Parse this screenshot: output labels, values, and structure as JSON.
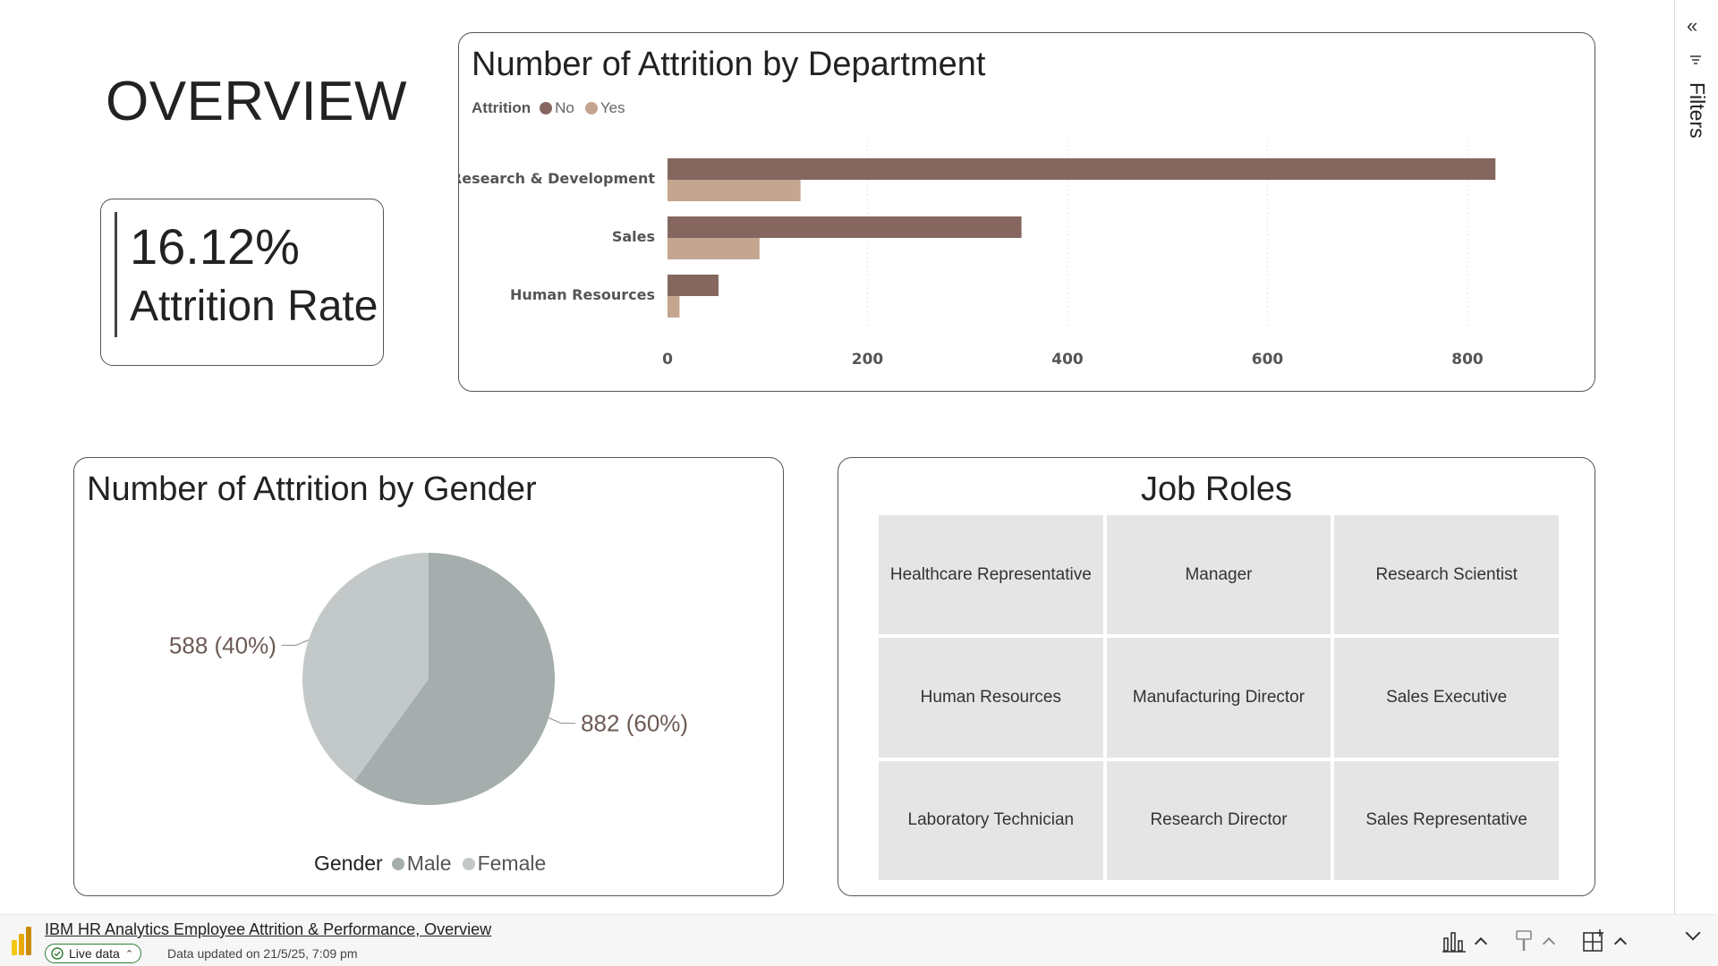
{
  "page": {
    "title": "OVERVIEW"
  },
  "kpi": {
    "value": "16.12%",
    "label": "Attrition Rate"
  },
  "dept_chart": {
    "title": "Number of Attrition by Department",
    "legend_title": "Attrition",
    "colors": {
      "No": "#856760",
      "Yes": "#c4a590"
    }
  },
  "gender_chart": {
    "title": "Number of Attrition by Gender",
    "legend_title": "Gender",
    "colors": {
      "Male": "#a5adad",
      "Female": "#c3c8c9"
    }
  },
  "job_roles": {
    "title": "Job Roles",
    "items": [
      "Healthcare Representative",
      "Manager",
      "Research Scientist",
      "Human Resources",
      "Manufacturing Director",
      "Sales Executive",
      "Laboratory Technician",
      "Research Director",
      "Sales Representative"
    ]
  },
  "side_panel": {
    "filters_label": "Filters",
    "collapse_icon": "double-chevron-left-icon"
  },
  "footer": {
    "report_title": "IBM HR Analytics Employee Attrition & Performance, Overview",
    "live_label": "Live data",
    "updated_text": "Data updated on 21/5/25, 7:09 pm"
  },
  "chart_data": [
    {
      "type": "bar",
      "orientation": "horizontal",
      "title": "Number of Attrition by Department",
      "legend_title": "Attrition",
      "legend_placement": "top-left",
      "categories": [
        "Research & Development",
        "Sales",
        "Human Resources"
      ],
      "series": [
        {
          "name": "No",
          "values": [
            828,
            354,
            51
          ]
        },
        {
          "name": "Yes",
          "values": [
            133,
            92,
            12
          ]
        }
      ],
      "xlim": [
        0,
        880
      ],
      "x_ticks": [
        0,
        200,
        400,
        600,
        800
      ],
      "grid": true
    },
    {
      "type": "pie",
      "title": "Number of Attrition by Gender",
      "legend_title": "Gender",
      "legend_placement": "bottom",
      "slices": [
        {
          "name": "Male",
          "value": 882,
          "label": "882 (60%)"
        },
        {
          "name": "Female",
          "value": 588,
          "label": "588 (40%)"
        }
      ]
    }
  ]
}
